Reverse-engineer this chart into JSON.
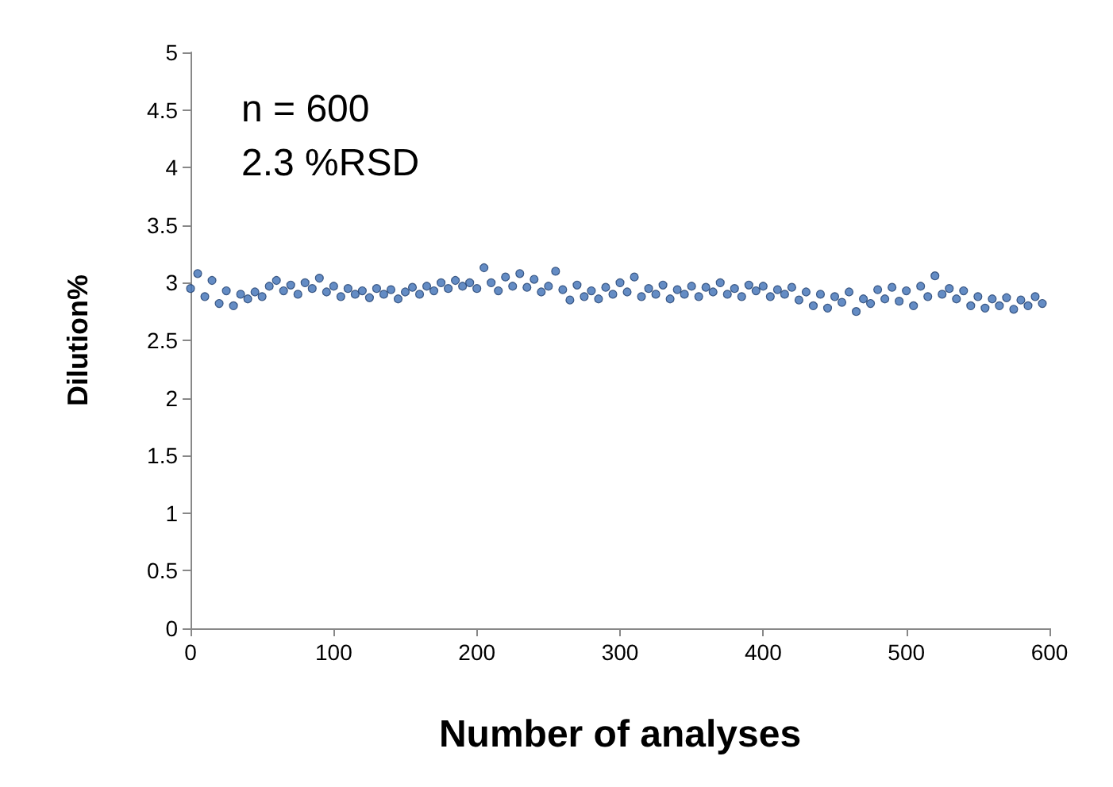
{
  "chart_data": {
    "type": "scatter",
    "xlabel": "Number of analyses",
    "ylabel": "Dilution%",
    "annotations": [
      "n = 600",
      "2.3 %RSD"
    ],
    "x": [
      0,
      5,
      10,
      15,
      20,
      25,
      30,
      35,
      40,
      45,
      50,
      55,
      60,
      65,
      70,
      75,
      80,
      85,
      90,
      95,
      100,
      105,
      110,
      115,
      120,
      125,
      130,
      135,
      140,
      145,
      150,
      155,
      160,
      165,
      170,
      175,
      180,
      185,
      190,
      195,
      200,
      205,
      210,
      215,
      220,
      225,
      230,
      235,
      240,
      245,
      250,
      255,
      260,
      265,
      270,
      275,
      280,
      285,
      290,
      295,
      300,
      305,
      310,
      315,
      320,
      325,
      330,
      335,
      340,
      345,
      350,
      355,
      360,
      365,
      370,
      375,
      380,
      385,
      390,
      395,
      400,
      405,
      410,
      415,
      420,
      425,
      430,
      435,
      440,
      445,
      450,
      455,
      460,
      465,
      470,
      475,
      480,
      485,
      490,
      495,
      500,
      505,
      510,
      515,
      520,
      525,
      530,
      535,
      540,
      545,
      550,
      555,
      560,
      565,
      570,
      575,
      580,
      585,
      590,
      595
    ],
    "values": [
      2.95,
      3.08,
      2.88,
      3.02,
      2.82,
      2.93,
      2.8,
      2.9,
      2.86,
      2.92,
      2.88,
      2.97,
      3.02,
      2.93,
      2.98,
      2.9,
      3.0,
      2.95,
      3.04,
      2.92,
      2.97,
      2.88,
      2.95,
      2.9,
      2.93,
      2.87,
      2.95,
      2.9,
      2.94,
      2.86,
      2.92,
      2.96,
      2.9,
      2.97,
      2.93,
      3.0,
      2.95,
      3.02,
      2.97,
      3.0,
      2.95,
      3.13,
      3.0,
      2.93,
      3.05,
      2.97,
      3.08,
      2.96,
      3.03,
      2.92,
      2.97,
      3.1,
      2.94,
      2.85,
      2.98,
      2.88,
      2.93,
      2.86,
      2.96,
      2.9,
      3.0,
      2.92,
      3.05,
      2.88,
      2.95,
      2.9,
      2.98,
      2.86,
      2.94,
      2.9,
      2.97,
      2.88,
      2.96,
      2.92,
      3.0,
      2.9,
      2.95,
      2.88,
      2.98,
      2.93,
      2.97,
      2.88,
      2.94,
      2.9,
      2.96,
      2.85,
      2.92,
      2.8,
      2.9,
      2.78,
      2.88,
      2.83,
      2.92,
      2.75,
      2.86,
      2.82,
      2.94,
      2.86,
      2.96,
      2.84,
      2.93,
      2.8,
      2.97,
      2.88,
      3.06,
      2.9,
      2.95,
      2.86,
      2.93,
      2.8,
      2.88,
      2.78,
      2.86,
      2.8,
      2.87,
      2.77,
      2.85,
      2.8,
      2.88,
      2.82
    ],
    "color": "#3d6fb5",
    "marker": "circle",
    "xlim": [
      0,
      600
    ],
    "xticks": [
      0,
      100,
      200,
      300,
      400,
      500,
      600
    ],
    "ylim": [
      0,
      5
    ],
    "yticks": [
      0,
      0.5,
      1,
      1.5,
      2,
      2.5,
      3,
      3.5,
      4,
      4.5,
      5
    ],
    "grid": false
  }
}
